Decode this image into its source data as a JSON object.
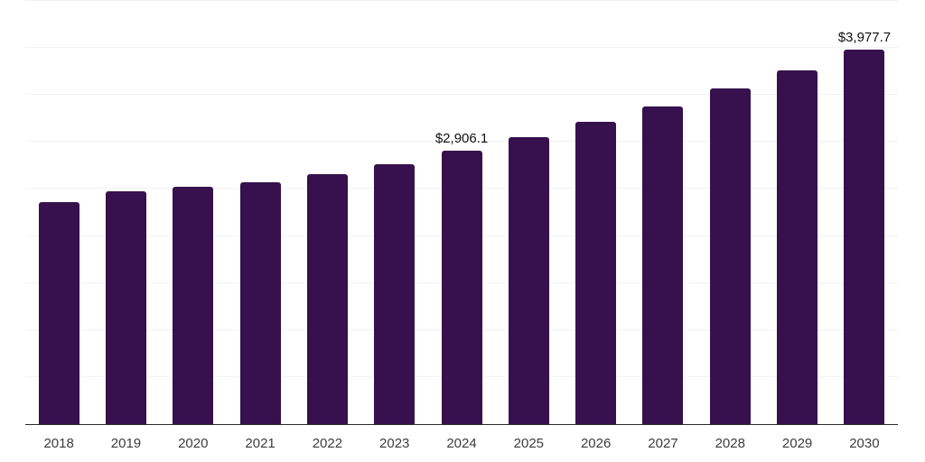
{
  "chart_data": {
    "type": "bar",
    "title": "",
    "xlabel": "",
    "ylabel": "",
    "categories": [
      "2018",
      "2019",
      "2020",
      "2021",
      "2022",
      "2023",
      "2024",
      "2025",
      "2026",
      "2027",
      "2028",
      "2029",
      "2030"
    ],
    "values": [
      2360,
      2480,
      2522,
      2576,
      2656,
      2768,
      2906.1,
      3050,
      3216,
      3375,
      3567,
      3760,
      3977.7
    ],
    "data_labels": [
      null,
      null,
      null,
      null,
      null,
      null,
      "$2,906.1",
      null,
      null,
      null,
      null,
      null,
      "$3,977.7"
    ],
    "ylim": [
      0,
      4500
    ],
    "grid_step": 500,
    "grid": true,
    "legend": false,
    "colors": {
      "bar": "#36114D",
      "gridline": "#f2f2f2",
      "axis_line": "#2b2b2b",
      "tick_label": "#3c3c3c",
      "data_label": "#101010",
      "background": "#ffffff"
    }
  }
}
